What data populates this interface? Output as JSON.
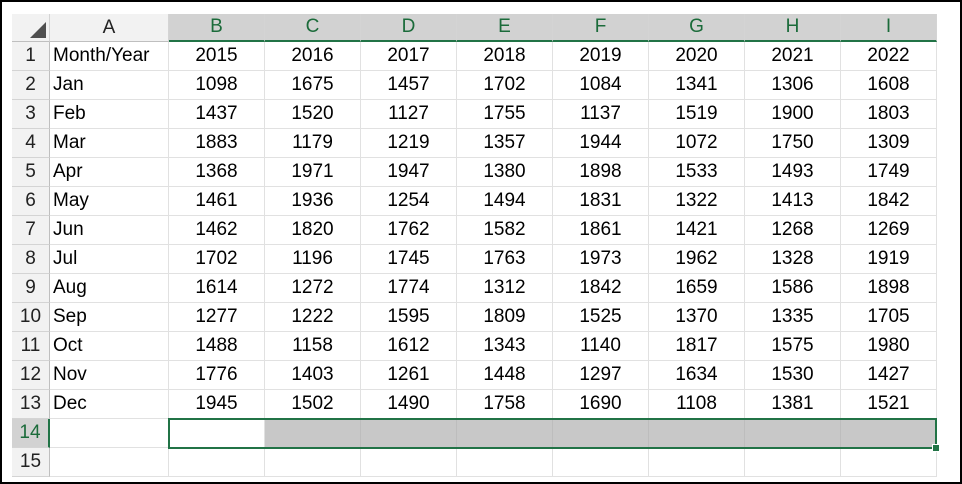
{
  "sheet": {
    "columns": [
      "A",
      "B",
      "C",
      "D",
      "E",
      "F",
      "G",
      "H",
      "I"
    ],
    "row_numbers": [
      "1",
      "2",
      "3",
      "4",
      "5",
      "6",
      "7",
      "8",
      "9",
      "10",
      "11",
      "12",
      "13",
      "14",
      "15"
    ],
    "selected_columns": [
      "B",
      "C",
      "D",
      "E",
      "F",
      "G",
      "H",
      "I"
    ],
    "selected_row": "14",
    "header_row": [
      "Month/Year",
      "2015",
      "2016",
      "2017",
      "2018",
      "2019",
      "2020",
      "2021",
      "2022"
    ],
    "rows": [
      [
        "Jan",
        "1098",
        "1675",
        "1457",
        "1702",
        "1084",
        "1341",
        "1306",
        "1608"
      ],
      [
        "Feb",
        "1437",
        "1520",
        "1127",
        "1755",
        "1137",
        "1519",
        "1900",
        "1803"
      ],
      [
        "Mar",
        "1883",
        "1179",
        "1219",
        "1357",
        "1944",
        "1072",
        "1750",
        "1309"
      ],
      [
        "Apr",
        "1368",
        "1971",
        "1947",
        "1380",
        "1898",
        "1533",
        "1493",
        "1749"
      ],
      [
        "May",
        "1461",
        "1936",
        "1254",
        "1494",
        "1831",
        "1322",
        "1413",
        "1842"
      ],
      [
        "Jun",
        "1462",
        "1820",
        "1762",
        "1582",
        "1861",
        "1421",
        "1268",
        "1269"
      ],
      [
        "Jul",
        "1702",
        "1196",
        "1745",
        "1763",
        "1973",
        "1962",
        "1328",
        "1919"
      ],
      [
        "Aug",
        "1614",
        "1272",
        "1774",
        "1312",
        "1842",
        "1659",
        "1586",
        "1898"
      ],
      [
        "Sep",
        "1277",
        "1222",
        "1595",
        "1809",
        "1525",
        "1370",
        "1335",
        "1705"
      ],
      [
        "Oct",
        "1488",
        "1158",
        "1612",
        "1343",
        "1140",
        "1817",
        "1575",
        "1980"
      ],
      [
        "Nov",
        "1776",
        "1403",
        "1261",
        "1448",
        "1297",
        "1634",
        "1530",
        "1427"
      ],
      [
        "Dec",
        "1945",
        "1502",
        "1490",
        "1758",
        "1690",
        "1108",
        "1381",
        "1521"
      ]
    ],
    "accent_color": "#217346",
    "corner_icon": "select-all-triangle-icon"
  }
}
